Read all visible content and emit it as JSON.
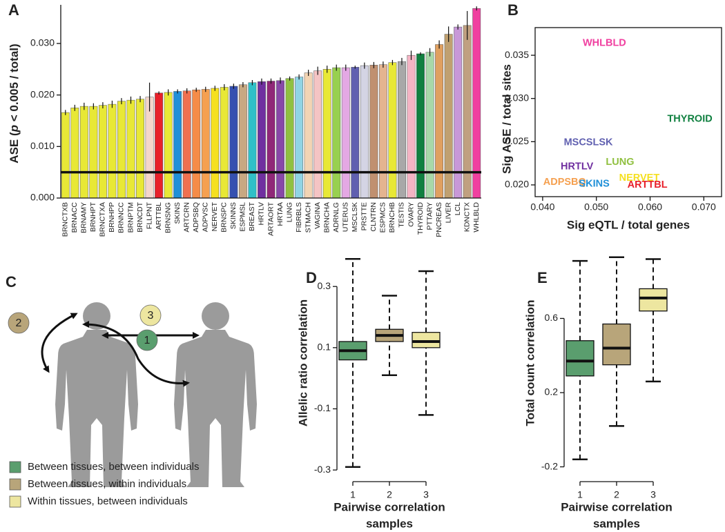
{
  "chart_data": [
    {
      "type": "bar",
      "panel": "A",
      "ylabel": {
        "before": "ASE (",
        "italic": "p",
        "after": " < 0.005 / total)"
      },
      "categories": [
        "BRNCTXB",
        "BRNACC",
        "BRNAMY",
        "BRNHPT",
        "BRNCTXA",
        "BRNHPP",
        "BRNNCC",
        "BRNPTM",
        "BRNCDT",
        "FLLPNT",
        "ARTTBL",
        "BRNSNG",
        "SKINS",
        "ARTCRN",
        "ADPSBQ",
        "ADPVSC",
        "NERVET",
        "BRNSPC",
        "SKINNS",
        "ESPMSL",
        "BREAST",
        "HRTLV",
        "ARTAORT",
        "HRTAA",
        "LUNG",
        "FIBRBLS",
        "STMACH",
        "VAGINA",
        "BRNCHA",
        "ADRNLG",
        "UTERUS",
        "MSCLSK",
        "PRSTTE",
        "CLNTRN",
        "ESPMCS",
        "BRNCHB",
        "TESTIS",
        "OVARY",
        "THYROID",
        "PTTARY",
        "PNCREAS",
        "LIVER",
        "LCL",
        "KDNCTX",
        "WHLBLD"
      ],
      "values": [
        0.0166,
        0.0175,
        0.0178,
        0.0178,
        0.018,
        0.0182,
        0.0188,
        0.019,
        0.0192,
        0.0196,
        0.0204,
        0.0205,
        0.0207,
        0.0208,
        0.021,
        0.0211,
        0.0213,
        0.0215,
        0.0217,
        0.022,
        0.0224,
        0.0226,
        0.0227,
        0.0228,
        0.0232,
        0.0235,
        0.0243,
        0.0247,
        0.025,
        0.0253,
        0.0253,
        0.0254,
        0.0257,
        0.0258,
        0.0259,
        0.0263,
        0.0265,
        0.0277,
        0.028,
        0.0283,
        0.0298,
        0.0318,
        0.0332,
        0.0335,
        0.0368
      ],
      "errors": [
        0.0005,
        0.0006,
        0.0007,
        0.0006,
        0.0006,
        0.0007,
        0.0006,
        0.0007,
        0.0006,
        0.0028,
        0.0003,
        0.0006,
        0.0004,
        0.0005,
        0.0004,
        0.0005,
        0.0005,
        0.0006,
        0.0005,
        0.0005,
        0.0005,
        0.0006,
        0.0005,
        0.0006,
        0.0004,
        0.0005,
        0.0006,
        0.0008,
        0.0007,
        0.0006,
        0.0006,
        0.0003,
        0.0006,
        0.0006,
        0.0006,
        0.0005,
        0.0007,
        0.0009,
        0.0003,
        0.0008,
        0.0008,
        0.0015,
        0.0005,
        0.0028,
        0.0004
      ],
      "colors": [
        "#e8e836",
        "#e8e836",
        "#e8e836",
        "#e8e836",
        "#e8e836",
        "#e8e836",
        "#e8e836",
        "#e8e836",
        "#e8e836",
        "#f4d6cc",
        "#e8202a",
        "#e8e836",
        "#2090d8",
        "#f07050",
        "#f58c48",
        "#f5a050",
        "#f5e020",
        "#e8e836",
        "#3550b0",
        "#c8a882",
        "#30c0c8",
        "#7030a0",
        "#902878",
        "#8848a8",
        "#90c040",
        "#90d4e4",
        "#f2d4b4",
        "#f4c4c4",
        "#e8e836",
        "#98d050",
        "#e4a8e4",
        "#6060b0",
        "#d4d4e4",
        "#c09070",
        "#e4b490",
        "#e8e836",
        "#a8a8a8",
        "#f4b4c4",
        "#108040",
        "#a8d8a8",
        "#e0a060",
        "#c0a070",
        "#c898d8",
        "#c0a080",
        "#f040a0"
      ],
      "threshold": 0.005,
      "ylim": [
        0,
        0.0375
      ],
      "yticks": [
        {
          "value": 0,
          "label": "0.000"
        },
        {
          "value": 0.01,
          "label": "0.010"
        },
        {
          "value": 0.02,
          "label": "0.020"
        },
        {
          "value": 0.03,
          "label": "0.030"
        }
      ]
    },
    {
      "type": "scatter",
      "panel": "B",
      "xlabel": "Sig eQTL / total genes",
      "ylabel": "Sig ASE / total sites",
      "labels": [
        "WHLBLD",
        "THYROID",
        "MSCSLSK",
        "HRTLV",
        "LUNG",
        "NERVET",
        "ADPSBQ",
        "SKINS",
        "ARTTBL"
      ],
      "x": [
        0.0515,
        0.0674,
        0.0485,
        0.0464,
        0.0544,
        0.058,
        0.0441,
        0.0496,
        0.0595
      ],
      "y": [
        0.0364,
        0.0276,
        0.0249,
        0.0221,
        0.0226,
        0.0208,
        0.0203,
        0.0201,
        0.02
      ],
      "colors": [
        "#f040a0",
        "#108040",
        "#6060b0",
        "#7030a0",
        "#90c040",
        "#f5e020",
        "#f5a050",
        "#2090d8",
        "#e8202a"
      ],
      "xlim": [
        0.0386,
        0.0733
      ],
      "ylim": [
        0.01864,
        0.0382
      ],
      "xticks": [
        {
          "value": 0.04,
          "label": "0.040"
        },
        {
          "value": 0.05,
          "label": "0.050"
        },
        {
          "value": 0.06,
          "label": "0.060"
        },
        {
          "value": 0.07,
          "label": "0.070"
        }
      ],
      "yticks": [
        {
          "value": 0.02,
          "label": "0.020"
        },
        {
          "value": 0.025,
          "label": "0.025"
        },
        {
          "value": 0.03,
          "label": "0.030"
        },
        {
          "value": 0.035,
          "label": "0.035"
        }
      ]
    },
    {
      "type": "box",
      "panel": "D",
      "ylabel": "Allelic ratio correlation",
      "xlabel": [
        "Pairwise correlation",
        "samples"
      ],
      "categories": [
        "1",
        "2",
        "3"
      ],
      "boxes": [
        {
          "whisker_low": -0.29,
          "q1": 0.06,
          "median": 0.09,
          "q3": 0.12,
          "whisker_high": 0.39,
          "color": "#5a9e6e"
        },
        {
          "whisker_low": 0.01,
          "q1": 0.12,
          "median": 0.14,
          "q3": 0.16,
          "whisker_high": 0.27,
          "color": "#b8a57a"
        },
        {
          "whisker_low": -0.12,
          "q1": 0.1,
          "median": 0.12,
          "q3": 0.15,
          "whisker_high": 0.35,
          "color": "#ede6a0"
        }
      ],
      "ylim": [
        -0.32,
        0.42
      ],
      "yticks": [
        -0.3,
        -0.1,
        0.1,
        0.3
      ]
    },
    {
      "type": "box",
      "panel": "E",
      "ylabel": "Total count correlation",
      "xlabel": [
        "Pairwise correlation",
        "samples"
      ],
      "categories": [
        "1",
        "2",
        "3"
      ],
      "boxes": [
        {
          "whisker_low": -0.16,
          "q1": 0.29,
          "median": 0.37,
          "q3": 0.48,
          "whisker_high": 0.91,
          "color": "#5a9e6e"
        },
        {
          "whisker_low": 0.02,
          "q1": 0.35,
          "median": 0.44,
          "q3": 0.57,
          "whisker_high": 0.93,
          "color": "#b8a57a"
        },
        {
          "whisker_low": 0.26,
          "q1": 0.64,
          "median": 0.71,
          "q3": 0.76,
          "whisker_high": 0.92,
          "color": "#ede6a0"
        }
      ],
      "ylim": [
        -0.25,
        0.97
      ],
      "yticks": [
        -0.2,
        0.2,
        0.6
      ]
    }
  ],
  "panel_c": {
    "panel": "C",
    "steps": [
      "1",
      "2",
      "3"
    ],
    "step_colors": [
      "#5a9e6e",
      "#b8a57a",
      "#ede6a0"
    ],
    "legend": [
      {
        "label": "Between tissues, between individuals",
        "color": "#5a9e6e"
      },
      {
        "label": "Between tissues, within individuals",
        "color": "#b8a57a"
      },
      {
        "label": "Within tissues, between individuals",
        "color": "#ede6a0"
      }
    ]
  }
}
